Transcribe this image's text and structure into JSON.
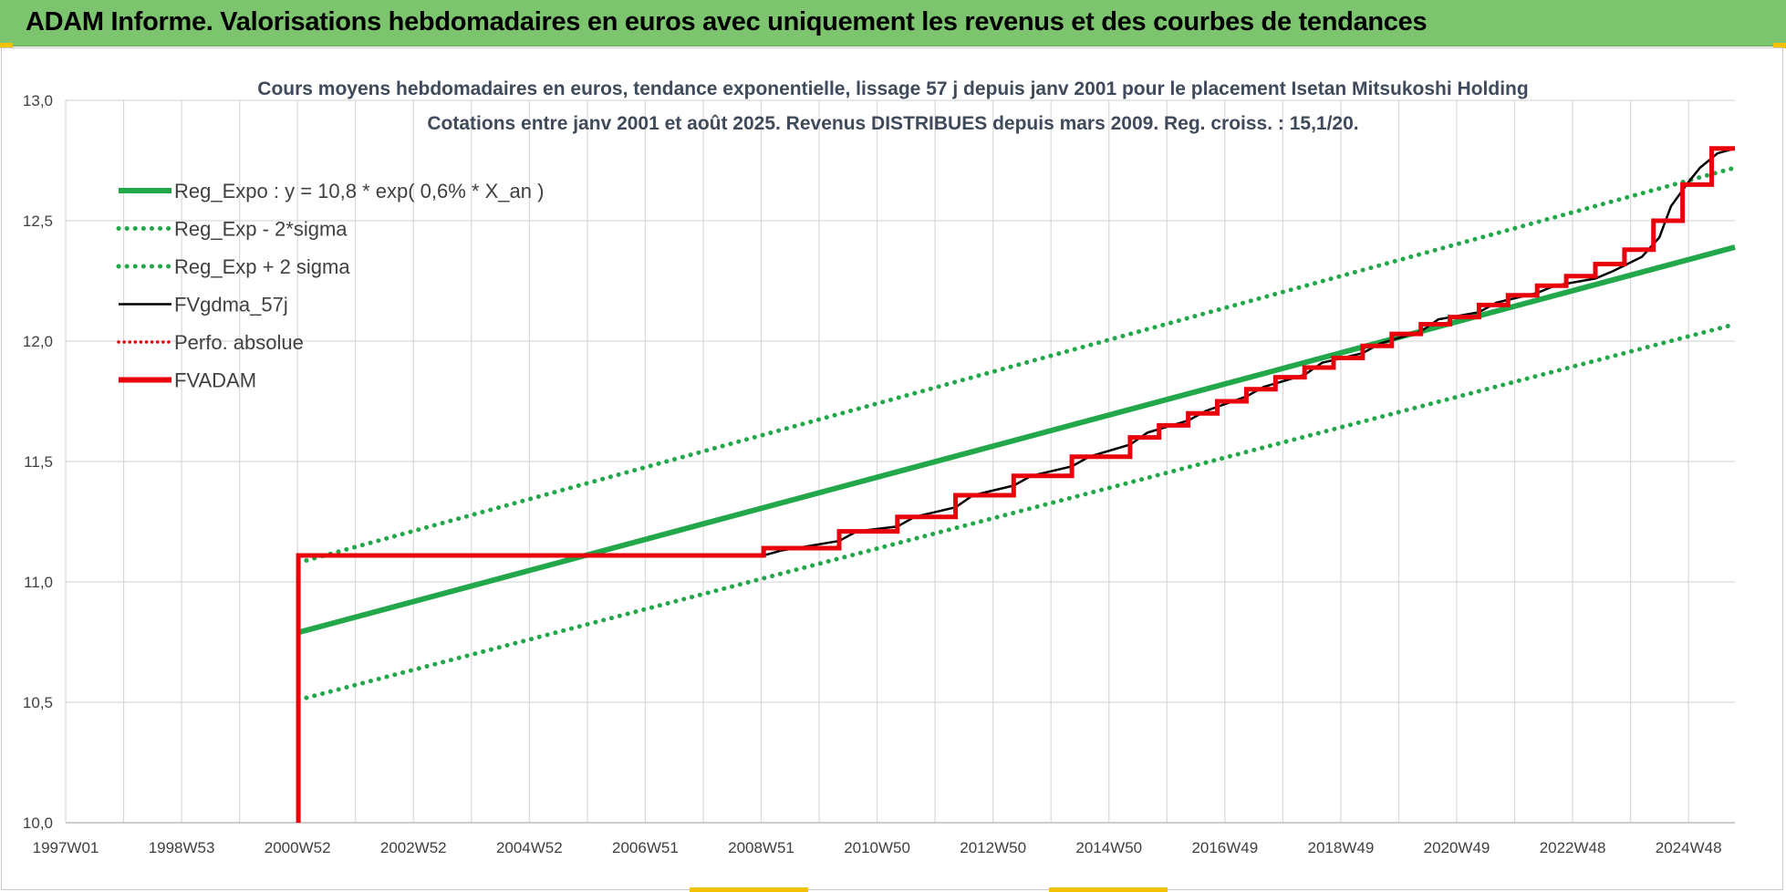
{
  "banner": {
    "title": "ADAM Informe. Valorisations hebdomadaires en euros avec uniquement les revenus et des courbes de tendances"
  },
  "colors": {
    "banner": "#7cc46e",
    "reg_green": "#22a84a",
    "fvadam_red": "#e8000b",
    "fvgdma_black": "#000000",
    "grid": "#d9d9d9"
  },
  "chart_data": {
    "type": "line",
    "title_line1": "Cours moyens hebdomadaires en euros, tendance exponentielle, lissage 57 j depuis janv 2001 pour le placement Isetan Mitsukoshi Holding",
    "title_line2": "Cotations entre janv 2001 et août 2025. Revenus DISTRIBUES depuis mars 2009. Reg. croiss. : 15,1/20.",
    "x_tick_labels": [
      "1997W01",
      "1998W53",
      "2000W52",
      "2002W52",
      "2004W52",
      "2006W51",
      "2008W51",
      "2010W50",
      "2012W50",
      "2014W50",
      "2016W49",
      "2018W49",
      "2020W49",
      "2022W48",
      "2024W48"
    ],
    "y_tick_labels": [
      "10,0",
      "10,5",
      "11,0",
      "11,5",
      "12,0",
      "12,5",
      "13,0"
    ],
    "xlim": [
      1997.0,
      2025.7
    ],
    "ylim": [
      10.0,
      13.0
    ],
    "grid": true,
    "legend_position": "top-left",
    "series": [
      {
        "name": "Reg_Expo : y = 10,8 * exp( 0,6% *  X_an )",
        "style": "solid",
        "color": "#22a84a",
        "points": [
          [
            2001.0,
            10.79
          ],
          [
            2025.7,
            12.39
          ]
        ]
      },
      {
        "name": "Reg_Exp - 2*sigma",
        "style": "dotted",
        "color": "#22a84a",
        "points": [
          [
            2001.0,
            10.51
          ],
          [
            2025.7,
            12.07
          ]
        ]
      },
      {
        "name": "Reg_Exp + 2 sigma",
        "style": "dotted",
        "color": "#22a84a",
        "points": [
          [
            2001.0,
            11.08
          ],
          [
            2025.7,
            12.72
          ]
        ]
      },
      {
        "name": "FVgdma_57j",
        "style": "solid",
        "color": "#000000",
        "points": [
          [
            2001.0,
            11.11
          ],
          [
            2009.0,
            11.11
          ],
          [
            2009.3,
            11.13
          ],
          [
            2010.3,
            11.17
          ],
          [
            2010.6,
            11.21
          ],
          [
            2011.3,
            11.23
          ],
          [
            2011.6,
            11.27
          ],
          [
            2012.3,
            11.31
          ],
          [
            2012.6,
            11.36
          ],
          [
            2013.3,
            11.4
          ],
          [
            2013.6,
            11.44
          ],
          [
            2014.3,
            11.48
          ],
          [
            2014.6,
            11.52
          ],
          [
            2015.3,
            11.57
          ],
          [
            2015.6,
            11.62
          ],
          [
            2016.3,
            11.67
          ],
          [
            2016.6,
            11.71
          ],
          [
            2017.3,
            11.77
          ],
          [
            2017.6,
            11.81
          ],
          [
            2018.3,
            11.86
          ],
          [
            2018.6,
            11.91
          ],
          [
            2019.3,
            11.95
          ],
          [
            2019.6,
            11.99
          ],
          [
            2020.3,
            12.04
          ],
          [
            2020.6,
            12.09
          ],
          [
            2021.3,
            12.12
          ],
          [
            2021.6,
            12.16
          ],
          [
            2022.3,
            12.2
          ],
          [
            2022.6,
            12.23
          ],
          [
            2023.3,
            12.26
          ],
          [
            2023.6,
            12.29
          ],
          [
            2024.1,
            12.35
          ],
          [
            2024.4,
            12.43
          ],
          [
            2024.6,
            12.56
          ],
          [
            2024.9,
            12.66
          ],
          [
            2025.1,
            12.72
          ],
          [
            2025.4,
            12.78
          ],
          [
            2025.7,
            12.8
          ]
        ]
      },
      {
        "name": "Perfo. absolue",
        "style": "dotted",
        "color": "#e8000b",
        "points": []
      },
      {
        "name": "FVADAM",
        "style": "step",
        "color": "#e8000b",
        "points": [
          [
            2001.0,
            10.0
          ],
          [
            2001.0,
            11.11
          ],
          [
            2009.0,
            11.11
          ],
          [
            2009.0,
            11.14
          ],
          [
            2010.3,
            11.14
          ],
          [
            2010.3,
            11.21
          ],
          [
            2011.3,
            11.21
          ],
          [
            2011.3,
            11.27
          ],
          [
            2012.3,
            11.27
          ],
          [
            2012.3,
            11.36
          ],
          [
            2013.3,
            11.36
          ],
          [
            2013.3,
            11.44
          ],
          [
            2014.3,
            11.44
          ],
          [
            2014.3,
            11.52
          ],
          [
            2015.3,
            11.52
          ],
          [
            2015.3,
            11.6
          ],
          [
            2015.8,
            11.6
          ],
          [
            2015.8,
            11.65
          ],
          [
            2016.3,
            11.65
          ],
          [
            2016.3,
            11.7
          ],
          [
            2016.8,
            11.7
          ],
          [
            2016.8,
            11.75
          ],
          [
            2017.3,
            11.75
          ],
          [
            2017.3,
            11.8
          ],
          [
            2017.8,
            11.8
          ],
          [
            2017.8,
            11.85
          ],
          [
            2018.3,
            11.85
          ],
          [
            2018.3,
            11.89
          ],
          [
            2018.8,
            11.89
          ],
          [
            2018.8,
            11.93
          ],
          [
            2019.3,
            11.93
          ],
          [
            2019.3,
            11.98
          ],
          [
            2019.8,
            11.98
          ],
          [
            2019.8,
            12.03
          ],
          [
            2020.3,
            12.03
          ],
          [
            2020.3,
            12.07
          ],
          [
            2020.8,
            12.07
          ],
          [
            2020.8,
            12.1
          ],
          [
            2021.3,
            12.1
          ],
          [
            2021.3,
            12.15
          ],
          [
            2021.8,
            12.15
          ],
          [
            2021.8,
            12.19
          ],
          [
            2022.3,
            12.19
          ],
          [
            2022.3,
            12.23
          ],
          [
            2022.8,
            12.23
          ],
          [
            2022.8,
            12.27
          ],
          [
            2023.3,
            12.27
          ],
          [
            2023.3,
            12.32
          ],
          [
            2023.8,
            12.32
          ],
          [
            2023.8,
            12.38
          ],
          [
            2024.3,
            12.38
          ],
          [
            2024.3,
            12.5
          ],
          [
            2024.8,
            12.5
          ],
          [
            2024.8,
            12.65
          ],
          [
            2025.3,
            12.65
          ],
          [
            2025.3,
            12.8
          ],
          [
            2025.7,
            12.8
          ]
        ]
      }
    ]
  }
}
